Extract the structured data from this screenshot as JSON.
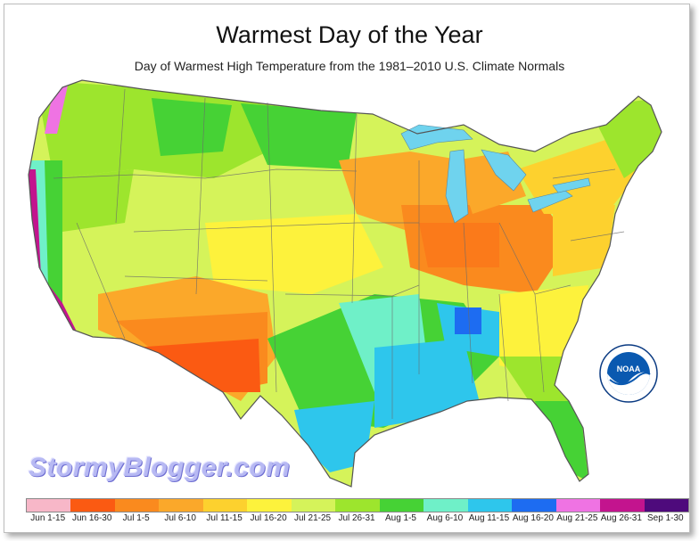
{
  "title": "Warmest Day of the Year",
  "subtitle": "Day of Warmest High Temperature from the 1981–2010 U.S. Climate Normals",
  "watermark": "StormyBlogger.com",
  "logo": {
    "name": "NOAA",
    "ring_text": "NATIONAL OCEANIC AND ATMOSPHERIC ADMINISTRATION · U.S. DEPARTMENT OF COMMERCE"
  },
  "legend": [
    {
      "label": "Jun 1-15",
      "color": "#f7b7c8"
    },
    {
      "label": "Jun 16-30",
      "color": "#fb5a12"
    },
    {
      "label": "Jul 1-5",
      "color": "#fa8a1e"
    },
    {
      "label": "Jul 6-10",
      "color": "#fba82a"
    },
    {
      "label": "Jul 11-15",
      "color": "#fdd12e"
    },
    {
      "label": "Jul 16-20",
      "color": "#fdf23c"
    },
    {
      "label": "Jul 21-25",
      "color": "#d5f35a"
    },
    {
      "label": "Jul 26-31",
      "color": "#9de52d"
    },
    {
      "label": "Aug 1-5",
      "color": "#46d235"
    },
    {
      "label": "Aug 6-10",
      "color": "#6ff0c8"
    },
    {
      "label": "Aug 11-15",
      "color": "#2ec6ec"
    },
    {
      "label": "Aug 16-20",
      "color": "#1d6cf1"
    },
    {
      "label": "Aug 21-25",
      "color": "#ef73e3"
    },
    {
      "label": "Aug 26-31",
      "color": "#c3148e"
    },
    {
      "label": "Sep 1-30",
      "color": "#4e0a7c"
    }
  ]
}
